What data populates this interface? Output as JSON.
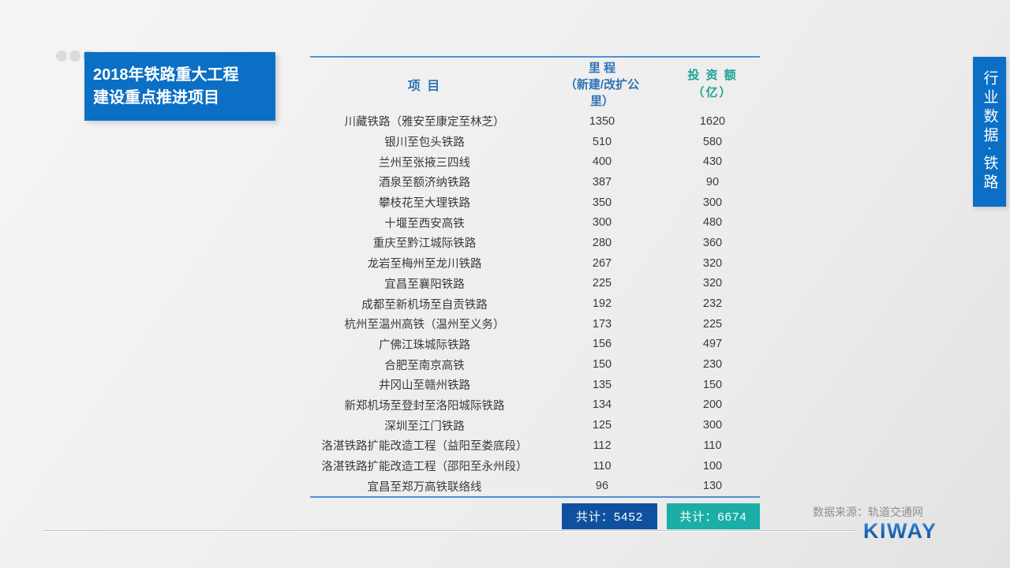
{
  "slide": {
    "title": "2018年铁路重大工程\n建设重点推进项目",
    "side_tab_label": "行业数据·铁路"
  },
  "table": {
    "headers": {
      "project": "项  目",
      "mileage": "里 程\n（新建/改扩公\n里）",
      "investment": "投 资 额\n（亿）"
    },
    "rows": [
      {
        "project": "川藏铁路（雅安至康定至林芝）",
        "mileage": "1350",
        "investment": "1620"
      },
      {
        "project": "银川至包头铁路",
        "mileage": "510",
        "investment": "580"
      },
      {
        "project": "兰州至张掖三四线",
        "mileage": "400",
        "investment": "430"
      },
      {
        "project": "酒泉至额济纳铁路",
        "mileage": "387",
        "investment": "90"
      },
      {
        "project": "攀枝花至大理铁路",
        "mileage": "350",
        "investment": "300"
      },
      {
        "project": "十堰至西安高铁",
        "mileage": "300",
        "investment": "480"
      },
      {
        "project": "重庆至黔江城际铁路",
        "mileage": "280",
        "investment": "360"
      },
      {
        "project": "龙岩至梅州至龙川铁路",
        "mileage": "267",
        "investment": "320"
      },
      {
        "project": "宜昌至襄阳铁路",
        "mileage": "225",
        "investment": "320"
      },
      {
        "project": "成都至新机场至自贡铁路",
        "mileage": "192",
        "investment": "232"
      },
      {
        "project": "杭州至温州高铁（温州至义务）",
        "mileage": "173",
        "investment": "225"
      },
      {
        "project": "广佛江珠城际铁路",
        "mileage": "156",
        "investment": "497"
      },
      {
        "project": "合肥至南京高铁",
        "mileage": "150",
        "investment": "230"
      },
      {
        "project": "井冈山至赣州铁路",
        "mileage": "135",
        "investment": "150"
      },
      {
        "project": "新郑机场至登封至洛阳城际铁路",
        "mileage": "134",
        "investment": "200"
      },
      {
        "project": "深圳至江门铁路",
        "mileage": "125",
        "investment": "300"
      },
      {
        "project": "洛湛铁路扩能改造工程（益阳至娄底段）",
        "mileage": "112",
        "investment": "110"
      },
      {
        "project": "洛湛铁路扩能改造工程（邵阳至永州段）",
        "mileage": "110",
        "investment": "100"
      },
      {
        "project": "宜昌至郑万高铁联络线",
        "mileage": "96",
        "investment": "130"
      }
    ],
    "totals": {
      "mileage": "共计：5452",
      "investment": "共计：6674"
    }
  },
  "footer": {
    "source": "数据来源：轨道交通网",
    "logo": "KIWAY"
  },
  "colors": {
    "brand_blue": "#0b6fc5",
    "rule_blue": "#4f92d2",
    "head_blue": "#2e74b5",
    "head_teal": "#1fa298",
    "total_blue": "#10519f",
    "total_teal": "#1baea6"
  }
}
